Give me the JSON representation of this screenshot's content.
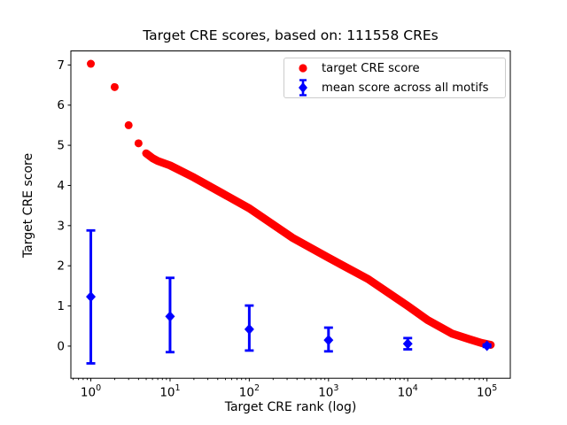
{
  "chart_data": {
    "type": "scatter",
    "title": "Target CRE scores, based on: 111558 CREs",
    "xlabel": "Target CRE rank (log)",
    "ylabel": "Target CRE score",
    "n_cres": 111558,
    "x_scale": "log",
    "xlim": [
      0.56,
      197000
    ],
    "ylim": [
      -0.8,
      7.35
    ],
    "x_tick_base": "10",
    "x_tick_exponents": [
      0,
      1,
      2,
      3,
      4,
      5
    ],
    "y_ticks": [
      0,
      1,
      2,
      3,
      4,
      5,
      6,
      7
    ],
    "grid": false,
    "legend_position": "upper right",
    "colors": {
      "target": "#ff0000",
      "mean": "#0000ff",
      "frame": "#000000",
      "legend_border": "#cccccc"
    },
    "series": [
      {
        "name": "target CRE score",
        "type": "scatter",
        "marker": "circle",
        "color": "#ff0000",
        "n_points": 111558,
        "leading_points": [
          {
            "rank": 1,
            "score": 7.03
          },
          {
            "rank": 2,
            "score": 6.45
          },
          {
            "rank": 3,
            "score": 5.5
          },
          {
            "rank": 4,
            "score": 5.05
          }
        ],
        "curve_log10_rank": [
          0.699,
          0.778,
          0.845,
          1.0,
          1.3,
          1.7,
          2.0,
          2.543,
          3.0,
          3.5,
          4.0,
          4.25,
          4.56,
          4.78,
          4.93,
          5.0475
        ],
        "curve_score": [
          4.8,
          4.68,
          4.61,
          4.5,
          4.2,
          3.76,
          3.43,
          2.7,
          2.2,
          1.67,
          1.0,
          0.65,
          0.31,
          0.17,
          0.08,
          0.03
        ]
      },
      {
        "name": "mean score across all motifs",
        "type": "errorbar",
        "marker": "diamond",
        "color": "#0000ff",
        "points": [
          {
            "rank": 1,
            "mean": 1.23,
            "lo": -0.43,
            "hi": 2.88
          },
          {
            "rank": 10,
            "mean": 0.74,
            "lo": -0.15,
            "hi": 1.7
          },
          {
            "rank": 100,
            "mean": 0.42,
            "lo": -0.11,
            "hi": 1.01
          },
          {
            "rank": 1000,
            "mean": 0.15,
            "lo": -0.13,
            "hi": 0.46
          },
          {
            "rank": 10000,
            "mean": 0.06,
            "lo": -0.08,
            "hi": 0.2
          },
          {
            "rank": 100000,
            "mean": 0.01,
            "lo": -0.02,
            "hi": 0.04
          }
        ]
      }
    ]
  }
}
